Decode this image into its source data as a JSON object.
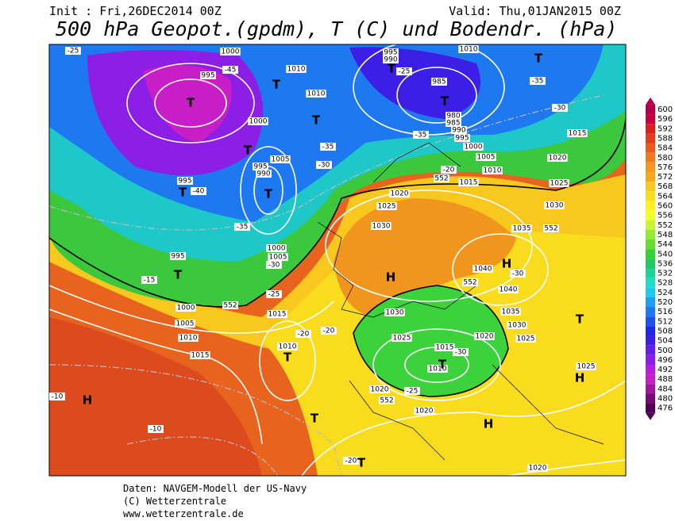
{
  "header": {
    "init": "Init : Fri,26DEC2014 00Z",
    "valid": "Valid: Thu,01JAN2015 00Z",
    "title": "500 hPa Geopot.(gpdm), T (C) und Bodendr. (hPa)"
  },
  "footer": [
    "Daten: NAVGEM-Modell der US-Navy",
    "(C) Wetterzentrale",
    "www.wetterzentrale.de"
  ],
  "colorbar": {
    "levels": [
      600,
      596,
      592,
      588,
      584,
      580,
      576,
      572,
      568,
      564,
      560,
      556,
      552,
      548,
      544,
      540,
      536,
      532,
      528,
      524,
      520,
      516,
      512,
      508,
      504,
      500,
      496,
      492,
      488,
      484,
      480,
      476
    ],
    "colors": [
      "#b4004b",
      "#c8003c",
      "#dc1e1e",
      "#e63c1e",
      "#ee5a1e",
      "#f0781e",
      "#f5961e",
      "#f5aa1e",
      "#f8c81e",
      "#fadc1e",
      "#fff01e",
      "#f0ff28",
      "#c8f532",
      "#96eb32",
      "#64dc32",
      "#32d232",
      "#1ec864",
      "#1ed296",
      "#1edcc8",
      "#1ec8f0",
      "#1ea0f0",
      "#1e78f0",
      "#1e50f0",
      "#1e28e6",
      "#3c1ee6",
      "#641ee6",
      "#8c1ee6",
      "#b41edc",
      "#c81ec8",
      "#a014a0",
      "#780a78",
      "#500050"
    ]
  },
  "map_labels": [
    "1000",
    "995",
    "-45",
    "T",
    "T",
    "1010",
    "1010",
    "T",
    "1000",
    "T",
    "1005",
    "995",
    "990",
    "T",
    "995",
    "T",
    "-40",
    "-35",
    "1000",
    "1005",
    "-30",
    "995",
    "T",
    "-25",
    "-15",
    "1000",
    "1005",
    "1010",
    "1015",
    "-25",
    "552",
    "1015",
    "-20",
    "-20",
    "1010",
    "T",
    "-10",
    "H",
    "-10",
    "T",
    "-20",
    "T",
    "995",
    "990",
    "-25",
    "T",
    "985",
    "T",
    "980",
    "985",
    "990",
    "-35",
    "995",
    "1000",
    "1005",
    "1010",
    "-20",
    "552",
    "1015",
    "1020",
    "1025",
    "1030",
    "1035",
    "552",
    "1030",
    "1025",
    "1020",
    "1015",
    "-30",
    "-35",
    "T",
    "1010",
    "H",
    "1040",
    "-30",
    "1040",
    "H",
    "552",
    "1030",
    "1035",
    "1030",
    "1025",
    "1020",
    "1025",
    "1015",
    "-30",
    "1010",
    "T",
    "-25",
    "1020",
    "552",
    "1020",
    "H",
    "1025",
    "H",
    "T",
    "1020",
    "-35",
    "-30"
  ]
}
